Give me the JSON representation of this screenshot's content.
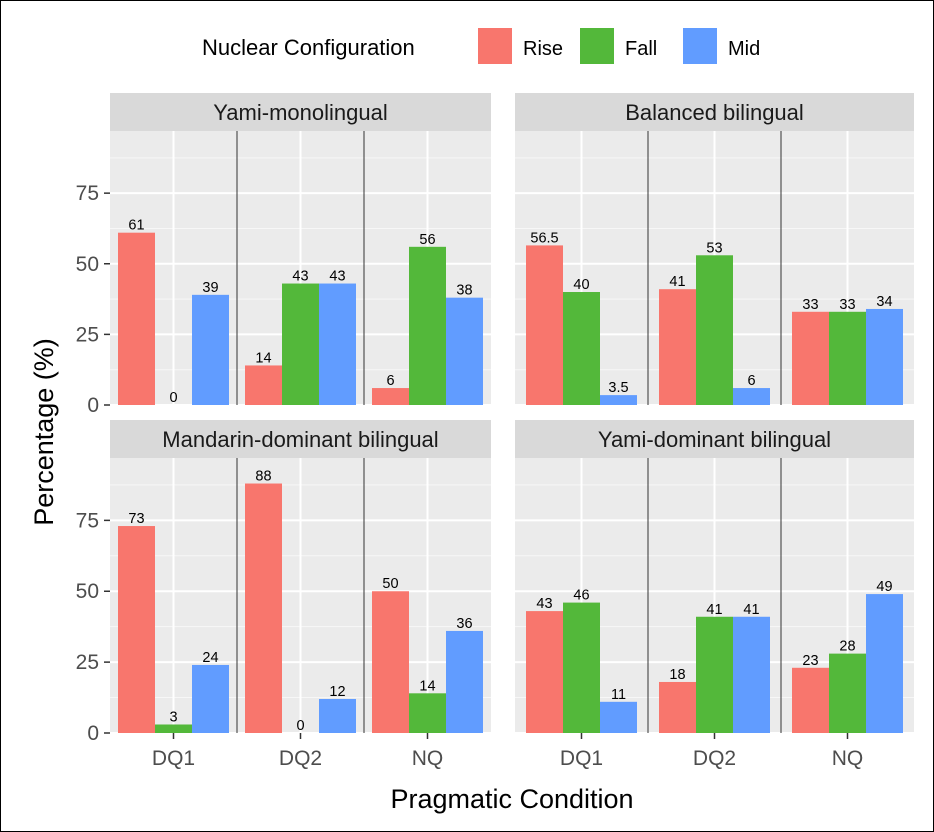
{
  "chart_data": {
    "type": "bar",
    "xlabel": "Pragmatic Condition",
    "ylabel": "Percentage (%)",
    "ylim": [
      0,
      97
    ],
    "yticks": [
      0,
      25,
      50,
      75
    ],
    "categories": [
      "DQ1",
      "DQ2",
      "NQ"
    ],
    "legend": {
      "title": "Nuclear Configuration",
      "position": "top",
      "entries": [
        {
          "name": "Rise",
          "color": "#F8766D"
        },
        {
          "name": "Fall",
          "color": "#53B83A"
        },
        {
          "name": "Mid",
          "color": "#619CFF"
        }
      ]
    },
    "panels": [
      {
        "title": "Yami-monolingual",
        "series": [
          {
            "name": "Rise",
            "values": [
              61,
              null,
              6
            ],
            "labels": [
              "61",
              "",
              "6"
            ]
          },
          {
            "name": "Fall",
            "values": [
              0,
              43,
              56
            ],
            "labels": [
              "0",
              "43",
              "56"
            ]
          },
          {
            "name": "Mid",
            "values": [
              39,
              43,
              38
            ],
            "labels": [
              "39",
              "43",
              "38"
            ]
          }
        ],
        "extra_bars": [
          {
            "category": "DQ2",
            "series": "Rise",
            "value": 14,
            "label": "14"
          }
        ]
      },
      {
        "title": "Balanced bilingual",
        "series": [
          {
            "name": "Rise",
            "values": [
              56.5,
              41,
              33
            ],
            "labels": [
              "56.5",
              "41",
              "33"
            ]
          },
          {
            "name": "Fall",
            "values": [
              40,
              53,
              33
            ],
            "labels": [
              "40",
              "53",
              "33"
            ]
          },
          {
            "name": "Mid",
            "values": [
              3.5,
              6,
              34
            ],
            "labels": [
              "3.5",
              "6",
              "34"
            ]
          }
        ]
      },
      {
        "title": "Mandarin-dominant bilingual",
        "series": [
          {
            "name": "Rise",
            "values": [
              73,
              88,
              50
            ],
            "labels": [
              "73",
              "88",
              "50"
            ]
          },
          {
            "name": "Fall",
            "values": [
              3,
              0,
              14
            ],
            "labels": [
              "3",
              "0",
              "14"
            ]
          },
          {
            "name": "Mid",
            "values": [
              24,
              12,
              36
            ],
            "labels": [
              "24",
              "12",
              "36"
            ]
          }
        ]
      },
      {
        "title": "Yami-dominant bilingual",
        "series": [
          {
            "name": "Rise",
            "values": [
              43,
              18,
              23
            ],
            "labels": [
              "43",
              "18",
              "23"
            ]
          },
          {
            "name": "Fall",
            "values": [
              46,
              41,
              28
            ],
            "labels": [
              "46",
              "41",
              "28"
            ]
          },
          {
            "name": "Mid",
            "values": [
              11,
              41,
              49
            ],
            "labels": [
              "11",
              "41",
              "49"
            ]
          }
        ]
      }
    ]
  }
}
